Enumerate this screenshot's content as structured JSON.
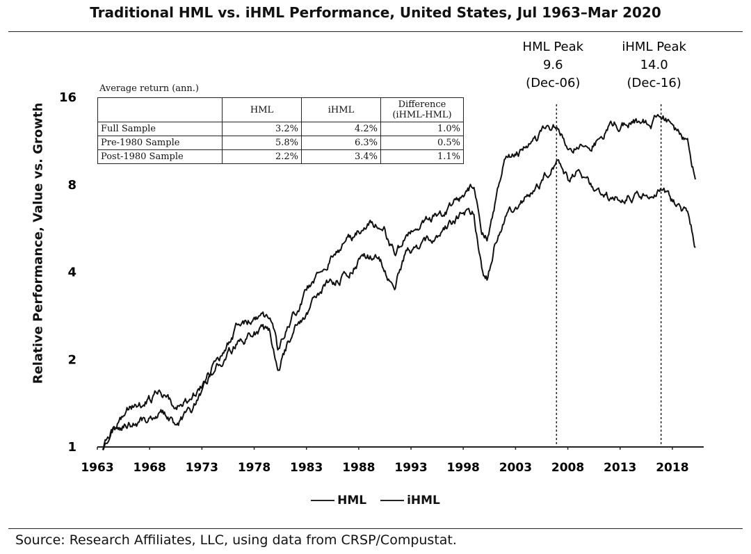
{
  "title": "Traditional HML vs. iHML Performance, United States, Jul 1963–Mar 2020",
  "source": "Source: Research Affiliates, LLC, using data from CRSP/Compustat.",
  "table": {
    "caption": "Average return (ann.)",
    "headers": [
      "HML",
      "iHML",
      "Difference (iHML-HML)"
    ],
    "rows": [
      {
        "label": "Full Sample",
        "hml": "3.2%",
        "ihml": "4.2%",
        "diff": "1.0%"
      },
      {
        "label": "Pre-1980 Sample",
        "hml": "5.8%",
        "ihml": "6.3%",
        "diff": "0.5%"
      },
      {
        "label": "Post-1980 Sample",
        "hml": "2.2%",
        "ihml": "3.4%",
        "diff": "1.1%"
      }
    ]
  },
  "chart_data": {
    "type": "line",
    "title": "Traditional HML vs. iHML Performance, United States, Jul 1963–Mar 2020",
    "xlabel": "",
    "ylabel": "Relative Performance, Value vs. Growth",
    "yscale": "log2",
    "xlim": [
      1963,
      2021
    ],
    "ylim": [
      1,
      16
    ],
    "x_ticks": [
      "1963",
      "1968",
      "1973",
      "1978",
      "1983",
      "1988",
      "1993",
      "1998",
      "2003",
      "2008",
      "2013",
      "2018"
    ],
    "y_ticks": [
      "1",
      "2",
      "4",
      "8",
      "16"
    ],
    "legend_position": "bottom-center",
    "grid": false,
    "annotations": [
      {
        "lines": [
          "HML Peak",
          "9.6",
          "(Dec-06)"
        ],
        "x": 2006.92,
        "value": 9.6
      },
      {
        "lines": [
          "iHML Peak",
          "14.0",
          "(Dec-16)"
        ],
        "x": 2016.92,
        "value": 14.0
      }
    ],
    "series": [
      {
        "name": "HML",
        "color": "#111111",
        "x": [
          1963.5,
          1964.5,
          1966,
          1968,
          1969,
          1970,
          1970.5,
          1972,
          1974.5,
          1976.5,
          1978.5,
          1979.5,
          1980.3,
          1981.5,
          1983.5,
          1985,
          1987,
          1988.5,
          1990,
          1991.5,
          1992.5,
          1994,
          1996,
          1998,
          1999,
          1999.8,
          2000.3,
          2001,
          2002,
          2003.5,
          2006.92,
          2008,
          2009,
          2010,
          2012,
          2014,
          2016,
          2016.92,
          2018,
          2019.5,
          2020.2
        ],
        "values": [
          1.0,
          1.15,
          1.2,
          1.25,
          1.35,
          1.25,
          1.2,
          1.3,
          1.9,
          2.3,
          2.5,
          2.45,
          1.9,
          2.4,
          3.1,
          3.6,
          4.0,
          4.6,
          4.4,
          3.6,
          4.6,
          4.9,
          5.5,
          6.3,
          6.5,
          4.0,
          3.8,
          5.0,
          6.2,
          6.8,
          9.6,
          8.2,
          8.8,
          8.0,
          7.2,
          7.5,
          7.3,
          7.9,
          7.0,
          6.3,
          4.9
        ]
      },
      {
        "name": "iHML",
        "color": "#111111",
        "x": [
          1963.5,
          1964.5,
          1966,
          1968,
          1969,
          1970,
          1970.5,
          1972,
          1974.5,
          1976.5,
          1978.5,
          1979.5,
          1980.3,
          1981.5,
          1983.5,
          1985,
          1987,
          1988.5,
          1989.3,
          1990.5,
          1991.5,
          1992.5,
          1994,
          1996,
          1998,
          1999,
          1999.8,
          2000.3,
          2001,
          2002,
          2003.5,
          2006.92,
          2008,
          2009,
          2010,
          2012,
          2014,
          2016,
          2016.92,
          2018,
          2019.5,
          2020.2
        ],
        "values": [
          1.0,
          1.2,
          1.35,
          1.45,
          1.55,
          1.45,
          1.35,
          1.45,
          2.0,
          2.6,
          2.8,
          2.75,
          2.1,
          2.7,
          3.7,
          4.4,
          5.2,
          5.7,
          6.0,
          5.6,
          4.6,
          5.3,
          5.8,
          6.4,
          7.2,
          8.0,
          5.6,
          5.2,
          6.8,
          10.0,
          10.5,
          12.8,
          10.5,
          11.2,
          10.6,
          12.8,
          13.2,
          13.0,
          14.0,
          12.5,
          11.0,
          8.5
        ]
      }
    ]
  }
}
